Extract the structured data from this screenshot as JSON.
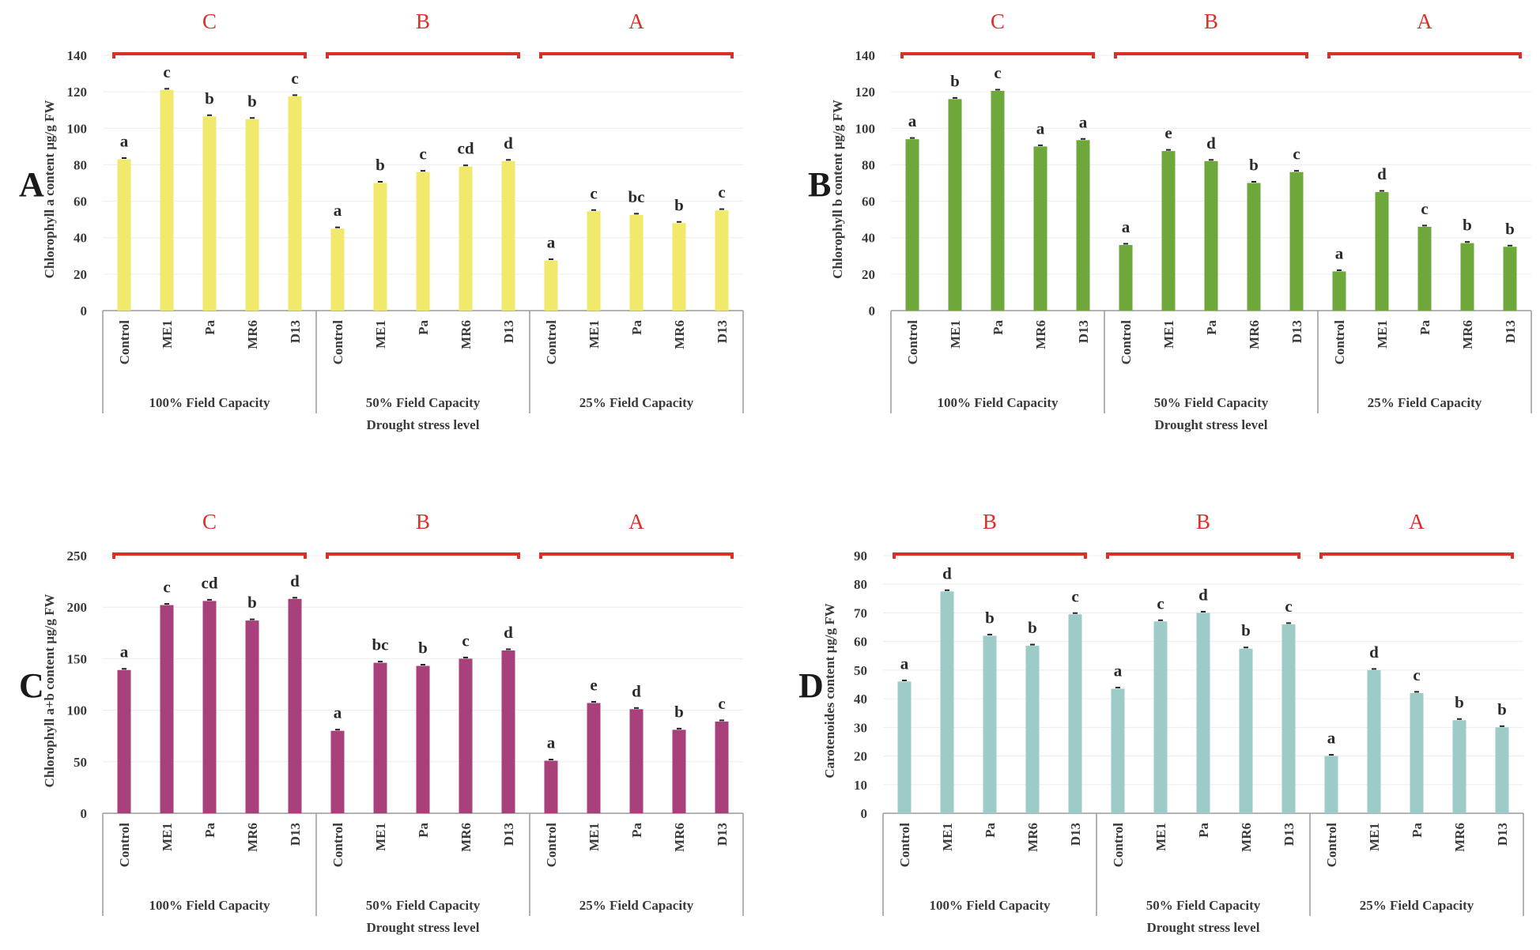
{
  "figure": {
    "xlabel": "Drought stress level",
    "groups": [
      "100% Field Capacity",
      "50% Field Capacity",
      "25% Field Capacity"
    ],
    "categories": [
      "Control",
      "ME1",
      "Pa",
      "MR6",
      "D13"
    ]
  },
  "chart_data": [
    {
      "panel": "A",
      "type": "bar",
      "title": "",
      "ylabel": "Chlorophyll a content µg/g FW",
      "xlabel": "Drought stress level",
      "ylim": [
        0,
        140
      ],
      "yticks": [
        0,
        20,
        40,
        60,
        80,
        100,
        120,
        140
      ],
      "color": "#f1e96b",
      "grid": true,
      "groups": [
        "100% Field Capacity",
        "50% Field Capacity",
        "25% Field Capacity"
      ],
      "categories": [
        "Control",
        "ME1",
        "Pa",
        "MR6",
        "D13"
      ],
      "group_letters": [
        "C",
        "B",
        "A"
      ],
      "series": [
        {
          "name": "100% Field Capacity",
          "values": [
            83,
            121,
            106.5,
            105,
            117.5
          ],
          "letters": [
            "a",
            "c",
            "b",
            "b",
            "c"
          ]
        },
        {
          "name": "50% Field Capacity",
          "values": [
            45,
            70,
            76,
            79,
            82
          ],
          "letters": [
            "a",
            "b",
            "c",
            "cd",
            "d"
          ]
        },
        {
          "name": "25% Field Capacity",
          "values": [
            27.5,
            54.5,
            52.5,
            48,
            55
          ],
          "letters": [
            "a",
            "c",
            "bc",
            "b",
            "c"
          ]
        }
      ]
    },
    {
      "panel": "B",
      "type": "bar",
      "title": "",
      "ylabel": "Chlorophyll b content µg/g FW",
      "xlabel": "Drought stress level",
      "ylim": [
        0,
        140
      ],
      "yticks": [
        0,
        20,
        40,
        60,
        80,
        100,
        120,
        140
      ],
      "color": "#6fa83a",
      "grid": true,
      "groups": [
        "100% Field Capacity",
        "50% Field Capacity",
        "25% Field Capacity"
      ],
      "categories": [
        "Control",
        "ME1",
        "Pa",
        "MR6",
        "D13"
      ],
      "group_letters": [
        "C",
        "B",
        "A"
      ],
      "series": [
        {
          "name": "100% Field Capacity",
          "values": [
            94,
            116,
            120.5,
            90,
            93.5
          ],
          "letters": [
            "a",
            "b",
            "c",
            "a",
            "a"
          ]
        },
        {
          "name": "50% Field Capacity",
          "values": [
            36,
            87.5,
            82,
            70,
            76
          ],
          "letters": [
            "a",
            "e",
            "d",
            "b",
            "c"
          ]
        },
        {
          "name": "25% Field Capacity",
          "values": [
            21.5,
            65,
            46,
            37,
            35
          ],
          "letters": [
            "a",
            "d",
            "c",
            "b",
            "b"
          ]
        }
      ]
    },
    {
      "panel": "C",
      "type": "bar",
      "title": "",
      "ylabel": "Chlorophyll a+b content µg/g FW",
      "xlabel": "Drought stress level",
      "ylim": [
        0,
        250
      ],
      "yticks": [
        0,
        50,
        100,
        150,
        200,
        250
      ],
      "color": "#a8407b",
      "grid": true,
      "groups": [
        "100% Field Capacity",
        "50% Field Capacity",
        "25% Field Capacity"
      ],
      "categories": [
        "Control",
        "ME1",
        "Pa",
        "MR6",
        "D13"
      ],
      "group_letters": [
        "C",
        "B",
        "A"
      ],
      "series": [
        {
          "name": "100% Field Capacity",
          "values": [
            139,
            202,
            206,
            187,
            208
          ],
          "letters": [
            "a",
            "c",
            "cd",
            "b",
            "d"
          ]
        },
        {
          "name": "50% Field Capacity",
          "values": [
            80,
            146,
            143,
            150,
            158
          ],
          "letters": [
            "a",
            "bc",
            "b",
            "c",
            "d"
          ]
        },
        {
          "name": "25% Field Capacity",
          "values": [
            51,
            107,
            101,
            81,
            89
          ],
          "letters": [
            "a",
            "e",
            "d",
            "b",
            "c"
          ]
        }
      ]
    },
    {
      "panel": "D",
      "type": "bar",
      "title": "",
      "ylabel": "Carotenoides content µg/g FW",
      "xlabel": "Drought stress level",
      "ylim": [
        0,
        90
      ],
      "yticks": [
        0,
        10,
        20,
        30,
        40,
        50,
        60,
        70,
        80,
        90
      ],
      "color": "#9ccbc8",
      "grid": true,
      "groups": [
        "100% Field Capacity",
        "50% Field Capacity",
        "25% Field Capacity"
      ],
      "categories": [
        "Control",
        "ME1",
        "Pa",
        "MR6",
        "D13"
      ],
      "group_letters": [
        "B",
        "B",
        "A"
      ],
      "series": [
        {
          "name": "100% Field Capacity",
          "values": [
            46,
            77.5,
            62,
            58.5,
            69.5
          ],
          "letters": [
            "a",
            "d",
            "b",
            "b",
            "c"
          ]
        },
        {
          "name": "50% Field Capacity",
          "values": [
            43.5,
            67,
            70,
            57.5,
            66
          ],
          "letters": [
            "a",
            "c",
            "d",
            "b",
            "c"
          ]
        },
        {
          "name": "25% Field Capacity",
          "values": [
            20,
            50,
            42,
            32.5,
            30
          ],
          "letters": [
            "a",
            "d",
            "c",
            "b",
            "b"
          ]
        }
      ]
    }
  ]
}
